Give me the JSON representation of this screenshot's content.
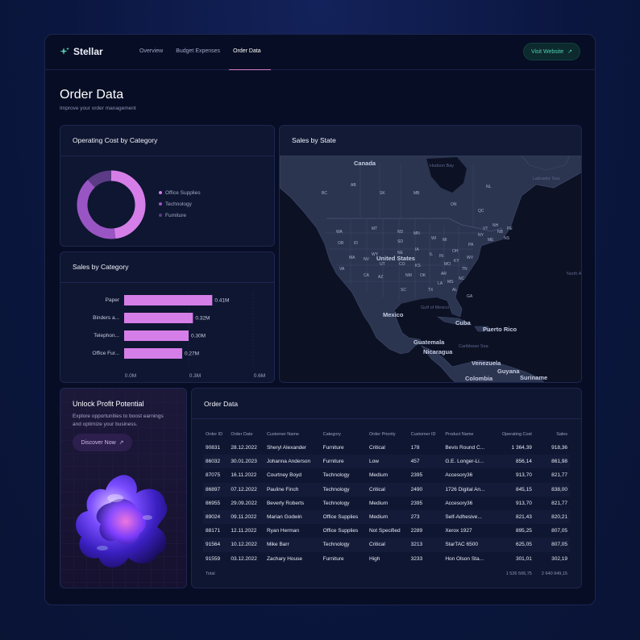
{
  "app": {
    "name": "Stellar",
    "visit_label": "Visit Website",
    "visit_icon": "external-arrow-icon"
  },
  "nav": {
    "items": [
      {
        "label": "Overview"
      },
      {
        "label": "Budget Expenses"
      },
      {
        "label": "Order Data",
        "active": true
      }
    ]
  },
  "page": {
    "title": "Order Data",
    "subtitle": "Improve your order management"
  },
  "operating_cost": {
    "title": "Operating Cost by Category",
    "legend": [
      {
        "label": "Office Supplies",
        "color": "#d57ee8"
      },
      {
        "label": "Technology",
        "color": "#9a55c4"
      },
      {
        "label": "Furniture",
        "color": "#5b3a86"
      }
    ],
    "chart_data": {
      "type": "pie",
      "labels": [
        "Office Supplies",
        "Technology",
        "Furniture"
      ],
      "values": [
        0.48,
        0.4,
        0.12
      ]
    }
  },
  "sales_by_category": {
    "title": "Sales by Category",
    "chart_data": {
      "type": "bar",
      "orientation": "horizontal",
      "categories": [
        "Paper",
        "Binders a...",
        "Telephon...",
        "Office Fur..."
      ],
      "values": [
        0.41,
        0.32,
        0.3,
        0.27
      ],
      "data_labels": [
        "0.41M",
        "0.32M",
        "0.30M",
        "0.27M"
      ],
      "xlim": [
        0,
        0.6
      ],
      "xticks": [
        "0.0M",
        "0.3M",
        "0.6M"
      ],
      "color": "#d57ee8"
    }
  },
  "sales_by_state": {
    "title": "Sales by State",
    "map_labels": {
      "countries": [
        "Canada",
        "United States",
        "Mexico",
        "Cuba",
        "Puerto Rico",
        "Guatemala",
        "Nicaragua",
        "Venezuela",
        "Guyana",
        "Suriname",
        "Colombia"
      ],
      "water": [
        "Hudson Bay",
        "Labrador Sea",
        "Gulf of Mexico",
        "Caribbean Sea",
        "North Atlantic Ocean"
      ],
      "regions": [
        "BC",
        "AB",
        "SK",
        "MB",
        "ON",
        "QC",
        "NL",
        "NB",
        "NS",
        "PE",
        "WA",
        "OR",
        "ID",
        "MT",
        "ND",
        "MN",
        "WI",
        "MI",
        "SD",
        "WY",
        "NE",
        "IA",
        "IL",
        "IN",
        "OH",
        "PA",
        "NY",
        "VT",
        "NH",
        "ME",
        "MA",
        "NV",
        "UT",
        "CO",
        "KS",
        "MO",
        "KY",
        "WV",
        "VA",
        "CA",
        "AZ",
        "NM",
        "OK",
        "AR",
        "TN",
        "NC",
        "SC",
        "TX",
        "LA",
        "MS",
        "AL",
        "GA",
        "FL"
      ]
    }
  },
  "profit": {
    "title": "Unlock Profit Potential",
    "text": "Explore opportunities to boost earnings and optimize your business.",
    "button_label": "Discover Now",
    "button_icon": "external-arrow-icon"
  },
  "order_table": {
    "title": "Order Data",
    "columns": [
      "Order ID",
      "Order Date",
      "Customer Name",
      "Category",
      "Order Priority",
      "Customer ID",
      "Product Name",
      "Operating Cost",
      "Sales"
    ],
    "rows": [
      [
        "90831",
        "28.12.2022",
        "Sheryl Alexander",
        "Furniture",
        "Critical",
        "178",
        "Bevis Round C...",
        "1 364,39",
        "918,36"
      ],
      [
        "86032",
        "30.01.2023",
        "Johanna Anderson",
        "Furniture",
        "Low",
        "457",
        "G.E. Longer-Li...",
        "856,14",
        "861,98"
      ],
      [
        "87075",
        "16.11.2022",
        "Courtney Boyd",
        "Technology",
        "Medium",
        "2395",
        "Accesory36",
        "913,70",
        "821,77"
      ],
      [
        "86897",
        "07.12.2022",
        "Pauline Finch",
        "Technology",
        "Critical",
        "2490",
        "1726 Digital An...",
        "845,15",
        "838,00"
      ],
      [
        "86955",
        "29.09.2022",
        "Beverly Roberts",
        "Technology",
        "Medium",
        "2395",
        "Accesory36",
        "913,70",
        "821,77"
      ],
      [
        "89024",
        "09.11.2022",
        "Marian Godwin",
        "Office Supplies",
        "Medium",
        "273",
        "Self-Adhesive...",
        "821,43",
        "820,21"
      ],
      [
        "88171",
        "12.11.2022",
        "Ryan Herman",
        "Office Supplies",
        "Not Specified",
        "2289",
        "Xerox 1927",
        "895,25",
        "807,05"
      ],
      [
        "91564",
        "10.12.2022",
        "Mike Barr",
        "Technology",
        "Critical",
        "3213",
        "StarTAC 6500",
        "625,05",
        "807,05"
      ],
      [
        "91559",
        "03.12.2022",
        "Zachary House",
        "Furniture",
        "High",
        "3233",
        "Hon Olson Sta...",
        "301,01",
        "302,19"
      ]
    ],
    "total_label": "Total",
    "total_operating_cost": "1 526 506,75",
    "total_sales": "2 640 949,15"
  }
}
